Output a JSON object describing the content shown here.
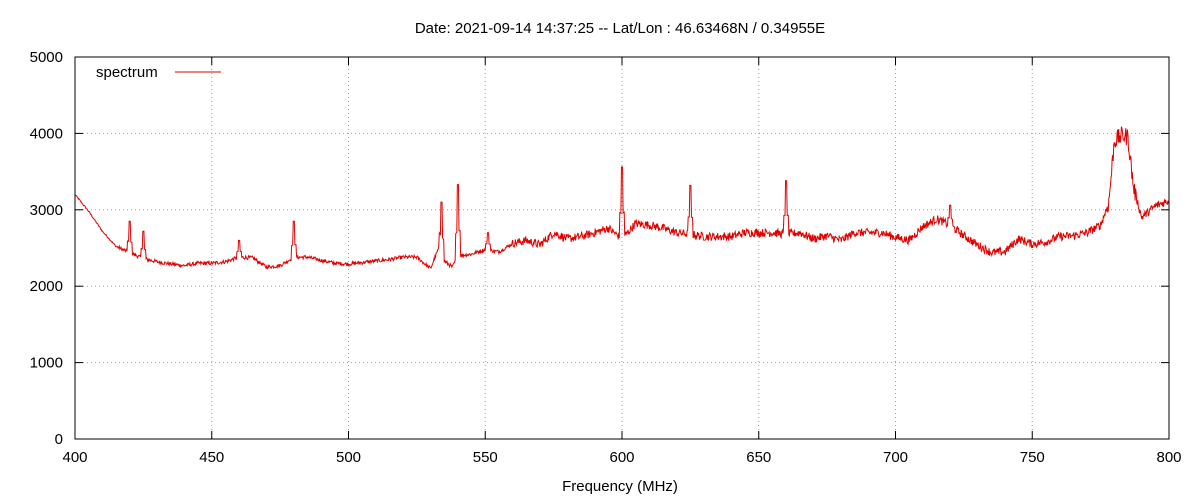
{
  "chart_data": {
    "type": "line",
    "title": "Date: 2021-09-14 14:37:25  --  Lat/Lon : 46.63468N / 0.34955E",
    "xlabel": "Frequency (MHz)",
    "ylabel": "",
    "xlim": [
      400,
      800
    ],
    "ylim": [
      0,
      5000
    ],
    "xticks": [
      400,
      450,
      500,
      550,
      600,
      650,
      700,
      750,
      800
    ],
    "yticks": [
      0,
      1000,
      2000,
      3000,
      4000,
      5000
    ],
    "grid": true,
    "legend_position": "top-left",
    "series": [
      {
        "name": "spectrum",
        "color": "#e00000",
        "x": [
          400,
          405,
          410,
          415,
          420,
          425,
          430,
          435,
          440,
          445,
          450,
          455,
          460,
          465,
          470,
          475,
          480,
          485,
          490,
          495,
          500,
          505,
          510,
          515,
          520,
          525,
          530,
          533,
          535,
          538,
          540,
          545,
          550,
          555,
          560,
          565,
          570,
          575,
          580,
          585,
          590,
          595,
          600,
          605,
          610,
          615,
          620,
          625,
          630,
          635,
          640,
          645,
          650,
          655,
          660,
          665,
          670,
          675,
          680,
          685,
          690,
          695,
          700,
          705,
          710,
          715,
          720,
          725,
          730,
          735,
          740,
          745,
          750,
          755,
          760,
          765,
          770,
          775,
          778,
          780,
          783,
          785,
          787,
          790,
          795,
          800
        ],
        "y": [
          3200,
          2980,
          2720,
          2520,
          2440,
          2360,
          2320,
          2290,
          2270,
          2300,
          2300,
          2320,
          2380,
          2370,
          2250,
          2270,
          2380,
          2380,
          2340,
          2300,
          2290,
          2310,
          2330,
          2350,
          2380,
          2380,
          2230,
          2500,
          2330,
          2250,
          2400,
          2420,
          2480,
          2450,
          2560,
          2600,
          2540,
          2700,
          2620,
          2650,
          2700,
          2760,
          2620,
          2820,
          2800,
          2760,
          2700,
          2680,
          2650,
          2650,
          2650,
          2700,
          2700,
          2700,
          2680,
          2700,
          2620,
          2660,
          2600,
          2700,
          2700,
          2700,
          2640,
          2600,
          2780,
          2880,
          2800,
          2660,
          2540,
          2440,
          2450,
          2620,
          2550,
          2580,
          2650,
          2660,
          2700,
          2800,
          3100,
          3900,
          3980,
          3950,
          3300,
          2900,
          3050,
          3120
        ],
        "spikes": [
          {
            "x": 420,
            "y": 2850
          },
          {
            "x": 425,
            "y": 2720
          },
          {
            "x": 460,
            "y": 2600
          },
          {
            "x": 480,
            "y": 2850
          },
          {
            "x": 534,
            "y": 3100
          },
          {
            "x": 540,
            "y": 3330
          },
          {
            "x": 551,
            "y": 2700
          },
          {
            "x": 600,
            "y": 3560
          },
          {
            "x": 625,
            "y": 3320
          },
          {
            "x": 660,
            "y": 3380
          },
          {
            "x": 720,
            "y": 3060
          }
        ]
      }
    ]
  }
}
